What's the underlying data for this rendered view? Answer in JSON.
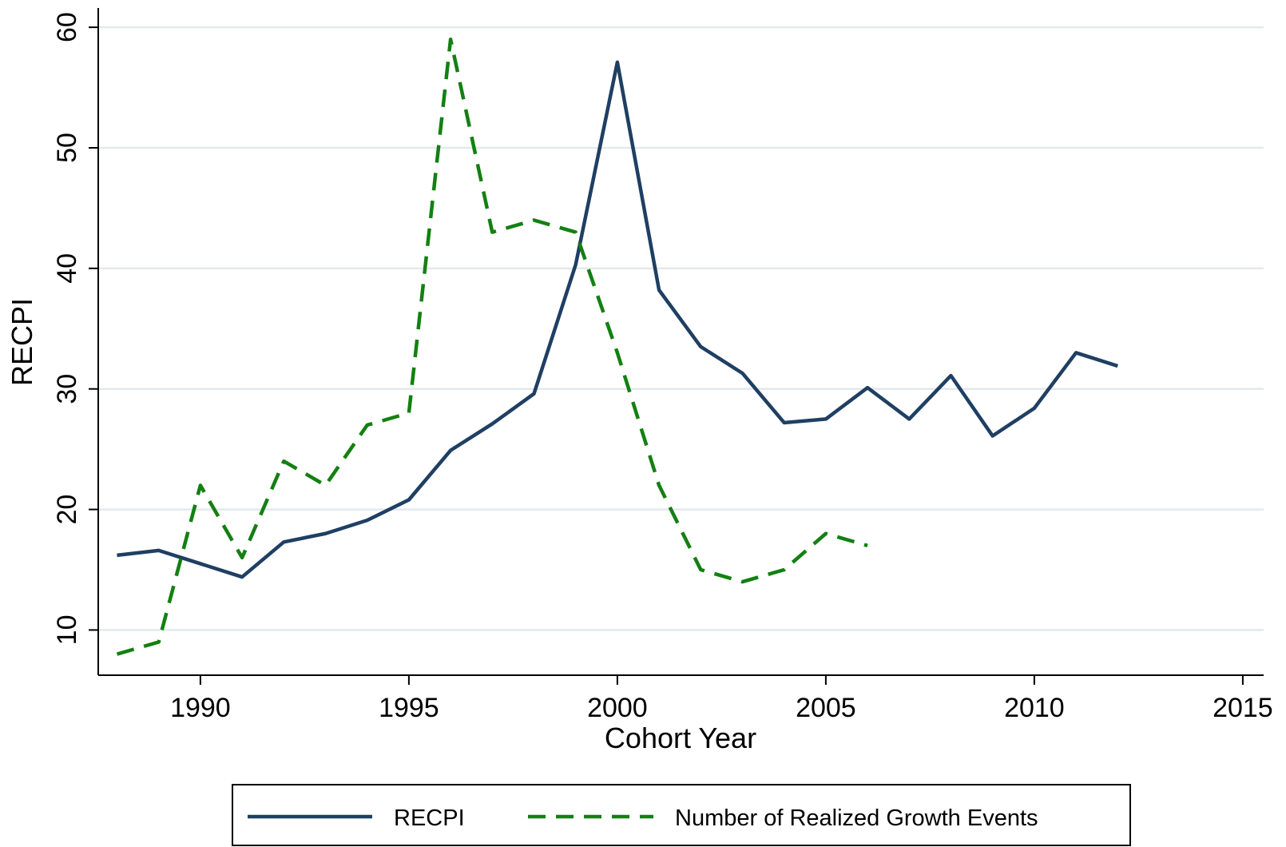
{
  "chart_data": {
    "type": "line",
    "xlabel": "Cohort Year",
    "ylabel": "RECPI",
    "x": [
      1988,
      1989,
      1990,
      1991,
      1992,
      1993,
      1994,
      1995,
      1996,
      1997,
      1998,
      1999,
      2000,
      2001,
      2002,
      2003,
      2004,
      2005,
      2006,
      2007,
      2008,
      2009,
      2010,
      2011,
      2012
    ],
    "series": [
      {
        "name": "RECPI",
        "color": "#1f3f63",
        "dash": "solid",
        "values": [
          16.2,
          16.6,
          15.5,
          14.4,
          17.3,
          18.0,
          19.1,
          20.8,
          24.9,
          27.1,
          29.6,
          40.3,
          57.1,
          38.2,
          33.5,
          31.3,
          27.2,
          27.5,
          30.1,
          27.5,
          31.1,
          26.1,
          28.4,
          33.0,
          31.9
        ]
      },
      {
        "name": "Number of Realized Growth Events",
        "color": "#138012",
        "dash": "dashed",
        "values": [
          8,
          9,
          22,
          16,
          24,
          22,
          27,
          28,
          59,
          43,
          44,
          43,
          33,
          22,
          15,
          14,
          15,
          18,
          17,
          null,
          null,
          null,
          null,
          null,
          null
        ]
      }
    ],
    "xlim": [
      1987.55,
      2015.5
    ],
    "ylim": [
      6.25,
      61.6
    ],
    "xticks": [
      1990,
      1995,
      2000,
      2005,
      2010,
      2015
    ],
    "yticks": [
      10,
      20,
      30,
      40,
      50,
      60
    ],
    "grid": true,
    "legend": "bottom"
  }
}
